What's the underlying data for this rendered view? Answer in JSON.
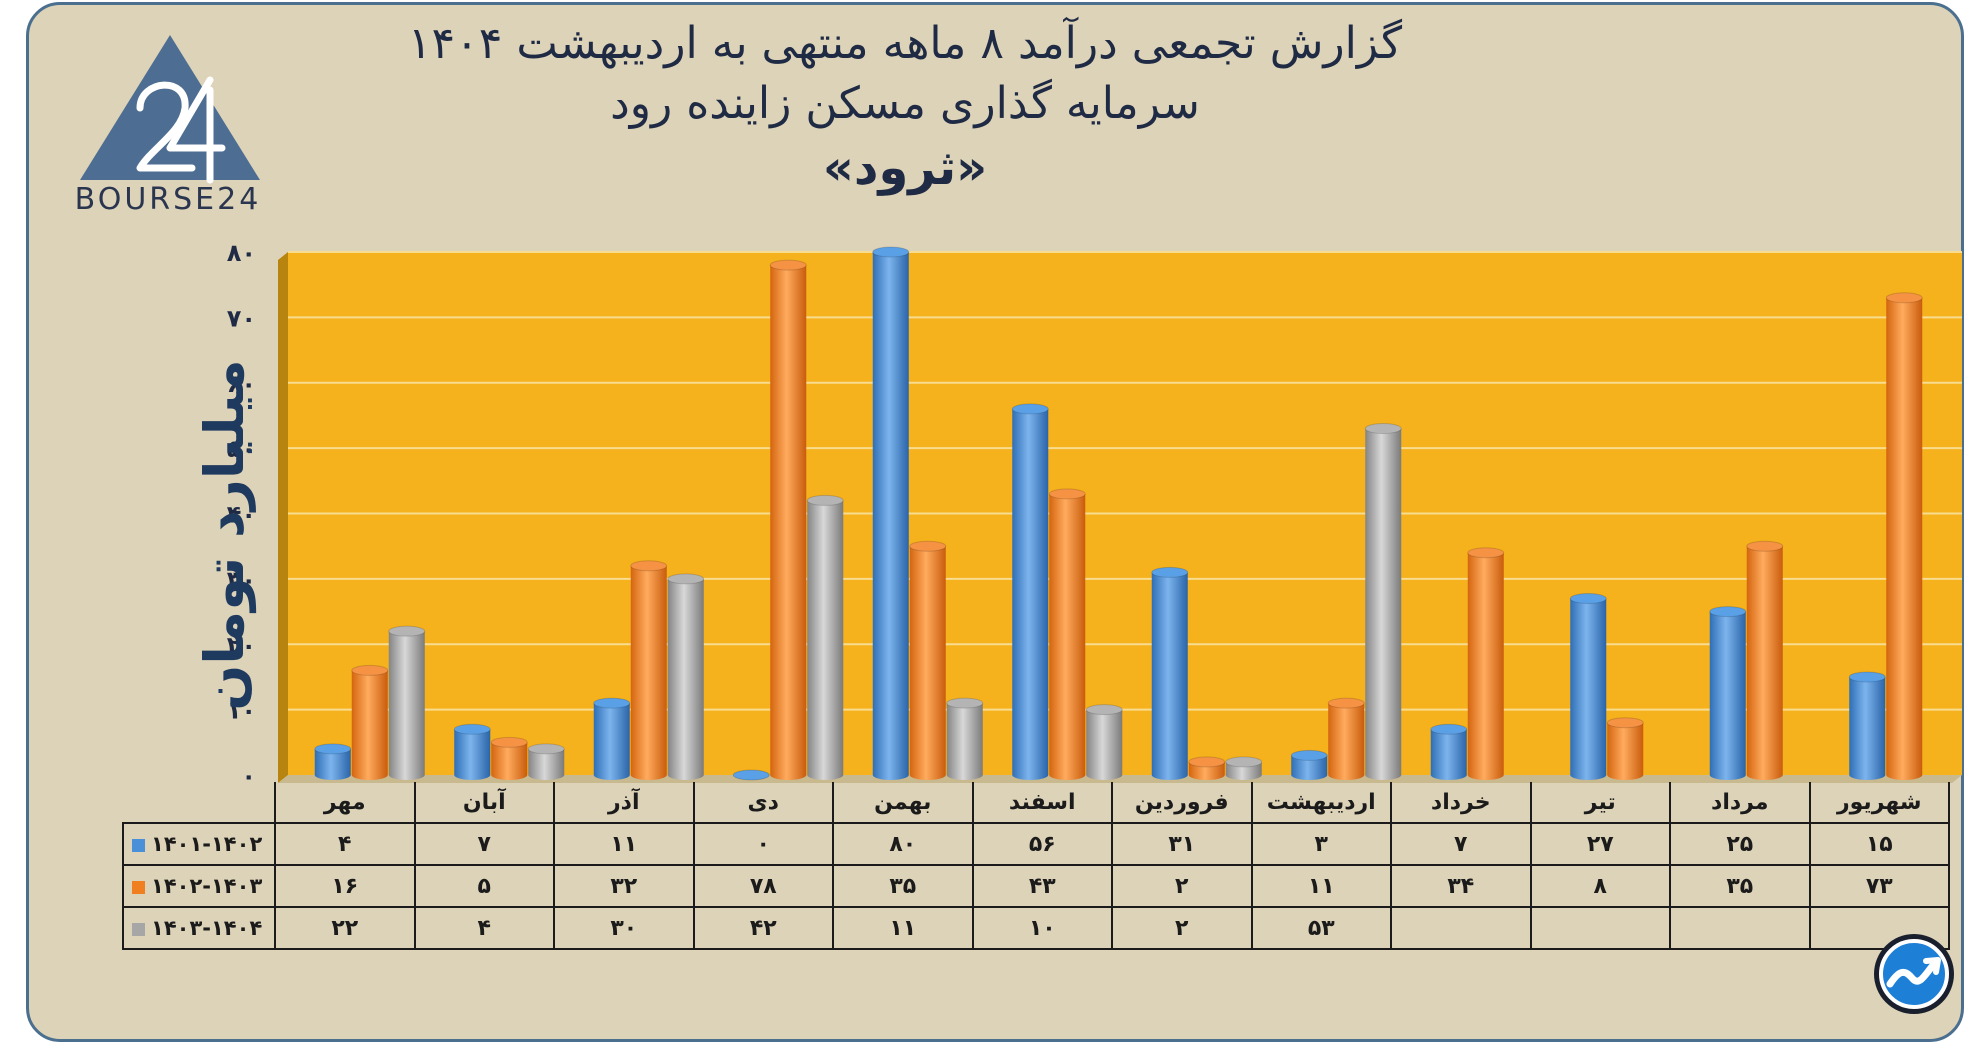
{
  "title": {
    "line1": "گزارش تجمعی درآمد ۸ ماهه منتهی به اردیبهشت ۱۴۰۴",
    "line2": "سرمایه گذاری مسکن زاینده رود",
    "line3": "«ثرود»"
  },
  "logo": {
    "text": "BOURSE24"
  },
  "colors": {
    "background": "#ddd3b8",
    "plot_bg": "#f6b21c",
    "series1": "#4a90d9",
    "series2": "#f07f20",
    "series3": "#a6a6a6"
  },
  "chart_data": {
    "type": "bar",
    "ylabel": "میلیارد تومان",
    "ylim": [
      0,
      80
    ],
    "yticks": [
      "۰",
      "۱۰",
      "۲۰",
      "۳۰",
      "۴۰",
      "۵۰",
      "۶۰",
      "۷۰",
      "۸۰"
    ],
    "grid": true,
    "categories": [
      "مهر",
      "آبان",
      "آذر",
      "دی",
      "بهمن",
      "اسفند",
      "فروردین",
      "اردیبهشت",
      "خرداد",
      "تیر",
      "مرداد",
      "شهریور"
    ],
    "series": [
      {
        "name": "۱۴۰۱-۱۴۰۲",
        "values": [
          4,
          7,
          11,
          0,
          80,
          56,
          31,
          3,
          7,
          27,
          25,
          15
        ],
        "labels": [
          "۴",
          "۷",
          "۱۱",
          "۰",
          "۸۰",
          "۵۶",
          "۳۱",
          "۳",
          "۷",
          "۲۷",
          "۲۵",
          "۱۵"
        ]
      },
      {
        "name": "۱۴۰۲-۱۴۰۳",
        "values": [
          16,
          5,
          32,
          78,
          35,
          43,
          2,
          11,
          34,
          8,
          35,
          73
        ],
        "labels": [
          "۱۶",
          "۵",
          "۳۲",
          "۷۸",
          "۳۵",
          "۴۳",
          "۲",
          "۱۱",
          "۳۴",
          "۸",
          "۳۵",
          "۷۳"
        ]
      },
      {
        "name": "۱۴۰۳-۱۴۰۴",
        "values": [
          22,
          4,
          30,
          42,
          11,
          10,
          2,
          53,
          null,
          null,
          null,
          null
        ],
        "labels": [
          "۲۲",
          "۴",
          "۳۰",
          "۴۲",
          "۱۱",
          "۱۰",
          "۲",
          "۵۳",
          "",
          "",
          "",
          ""
        ]
      }
    ]
  }
}
